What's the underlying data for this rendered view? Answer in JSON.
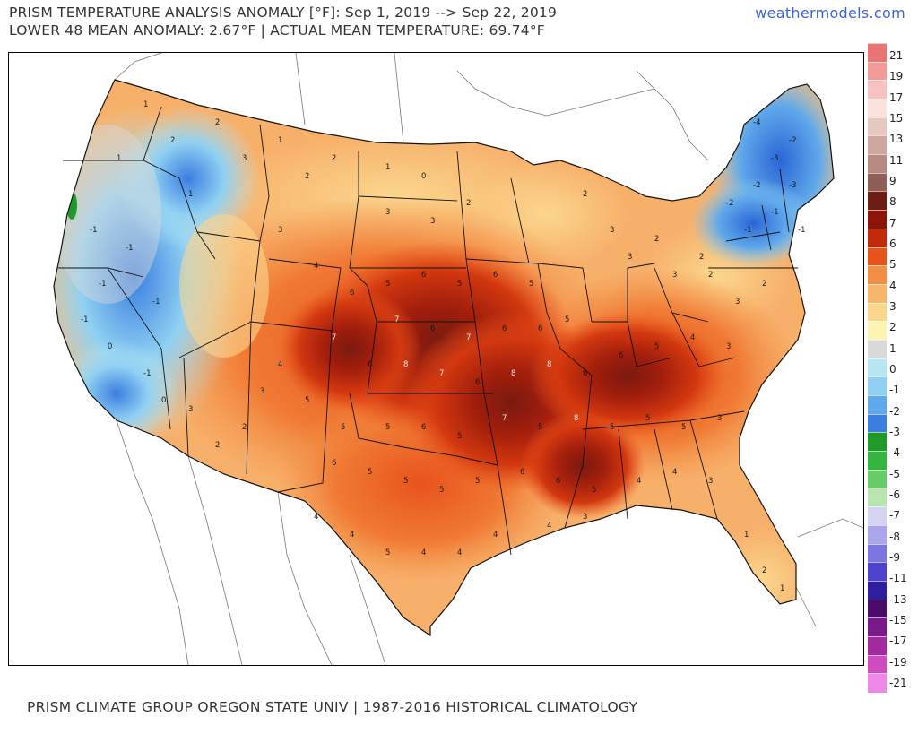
{
  "header": {
    "title_line1": "PRISM TEMPERATURE ANALYSIS ANOMALY [°F]: Sep 1, 2019 --> Sep 22, 2019",
    "title_line2": "LOWER 48 MEAN ANOMALY: 2.67°F | ACTUAL MEAN TEMPERATURE: 69.74°F",
    "brand": "weathermodels.com"
  },
  "footer": {
    "credit": "PRISM CLIMATE GROUP OREGON STATE UNIV | 1987-2016 HISTORICAL CLIMATOLOGY"
  },
  "legend": {
    "labels": [
      "21",
      "19",
      "17",
      "15",
      "13",
      "11",
      "9",
      "8",
      "7",
      "6",
      "5",
      "4",
      "3",
      "2",
      "1",
      "0",
      "-1",
      "-2",
      "-3",
      "-4",
      "-5",
      "-6",
      "-7",
      "-8",
      "-9",
      "-11",
      "-13",
      "-15",
      "-17",
      "-19",
      "-21"
    ],
    "colors": [
      "#e87474",
      "#f09a9a",
      "#f7c2c2",
      "#fbe2dc",
      "#e6c8c0",
      "#cfa79e",
      "#b88a80",
      "#8f5e56",
      "#6e1d15",
      "#8c1408",
      "#c22a0c",
      "#e8531c",
      "#f38e45",
      "#f8b66d",
      "#fbd68d",
      "#fdf3b2",
      "#d9d9d9",
      "#b7e7f5",
      "#8fd0f2",
      "#5fa8eb",
      "#3a7ee0",
      "#1f9a2a",
      "#35b540",
      "#66cc66",
      "#b9e6b0",
      "#d6d4f5",
      "#aaa6ec",
      "#7d76e0",
      "#4c44cc",
      "#2f1f9e",
      "#4a0a66",
      "#7a1a8a",
      "#a32a9e",
      "#d04ac0",
      "#ee88e4"
    ]
  },
  "map": {
    "state_labels": [
      {
        "v": "1"
      },
      {
        "v": "2"
      },
      {
        "v": "3"
      },
      {
        "v": "0"
      },
      {
        "v": "-1"
      },
      {
        "v": "-3"
      },
      {
        "v": "-4"
      },
      {
        "v": "4"
      },
      {
        "v": "5"
      },
      {
        "v": "6"
      },
      {
        "v": "7"
      },
      {
        "v": "8"
      }
    ]
  }
}
